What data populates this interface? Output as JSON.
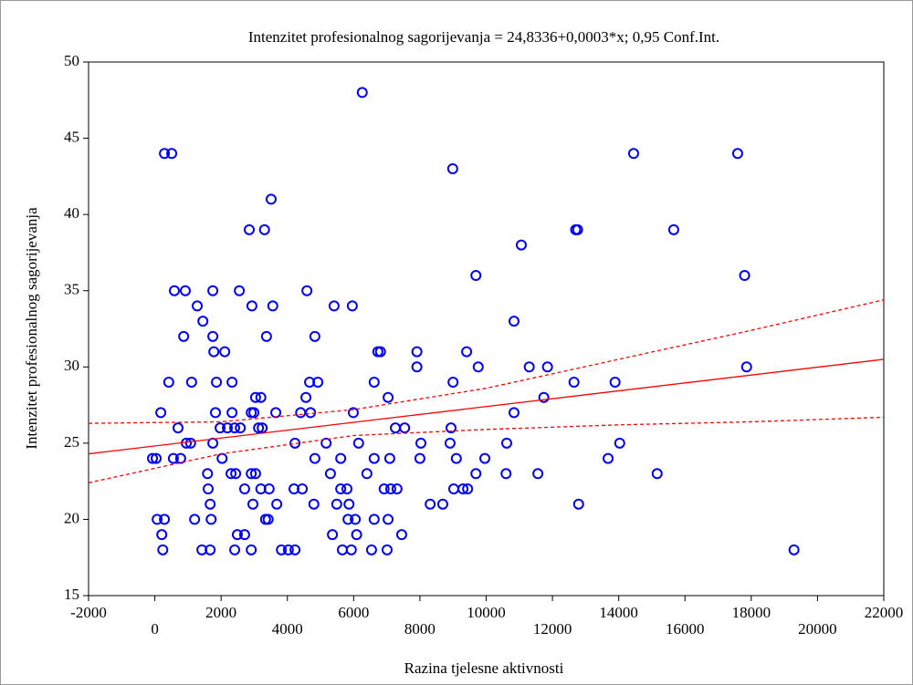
{
  "chart_data": {
    "type": "scatter",
    "title": "Intenzitet profesionalnog sagorijevanja = 24,8336+0,0003*x; 0,95 Conf.Int.",
    "x_label": "Razina tjelesne aktivnosti",
    "y_label": "Intenzitet profesionalnog sagorijevanja",
    "xlim": [
      -2000,
      22000
    ],
    "ylim": [
      15,
      50
    ],
    "xticks": [
      -2000,
      0,
      2000,
      4000,
      6000,
      8000,
      10000,
      12000,
      14000,
      16000,
      18000,
      20000,
      22000
    ],
    "yticks": [
      15,
      20,
      25,
      30,
      35,
      40,
      45,
      50
    ],
    "grid": false,
    "series": [
      {
        "color": "#0000ff",
        "x": [
          6260,
          290,
          510,
          14450,
          17590,
          8990,
          3510,
          2850,
          3310,
          12700,
          12760,
          15660,
          11060,
          9690,
          17800,
          590,
          920,
          1750,
          2550,
          4590,
          1280,
          2930,
          3560,
          5410,
          5960,
          1450,
          10840,
          870,
          1750,
          3370,
          4830,
          1780,
          2110,
          6730,
          6810,
          7910,
          9410,
          7910,
          9760,
          11300,
          11850,
          17860,
          420,
          1110,
          1860,
          2330,
          4670,
          4920,
          6620,
          9000,
          12650,
          13890,
          3040,
          3200,
          4560,
          7040,
          11740,
          180,
          1830,
          2330,
          2910,
          2990,
          3650,
          4400,
          4700,
          5990,
          10840,
          700,
          1970,
          2190,
          2410,
          2580,
          3130,
          3240,
          7260,
          7540,
          8940,
          950,
          1080,
          1750,
          4230,
          5170,
          6150,
          8030,
          8910,
          10620,
          14030,
          -70,
          40,
          560,
          780,
          2030,
          4830,
          5610,
          6620,
          7090,
          8000,
          9100,
          9960,
          13680,
          1590,
          2300,
          2440,
          2910,
          3040,
          5300,
          6400,
          9690,
          10600,
          11560,
          15160,
          1610,
          2710,
          3200,
          3450,
          4200,
          4450,
          5610,
          5800,
          6920,
          7120,
          7310,
          9020,
          9300,
          9440,
          1670,
          2960,
          3680,
          4800,
          5490,
          5860,
          8310,
          8690,
          12790,
          70,
          290,
          1200,
          1700,
          3340,
          3420,
          5830,
          6050,
          6620,
          7040,
          210,
          2490,
          2710,
          5360,
          6090,
          7450,
          240,
          1420,
          1670,
          2410,
          2910,
          3820,
          4030,
          4230,
          5660,
          5930,
          6540,
          7010,
          19290
        ],
        "values": [
          48,
          44,
          44,
          44,
          44,
          43,
          41,
          39,
          39,
          39,
          39,
          39,
          38,
          36,
          36,
          35,
          35,
          35,
          35,
          35,
          34,
          34,
          34,
          34,
          34,
          33,
          33,
          32,
          32,
          32,
          32,
          31,
          31,
          31,
          31,
          31,
          31,
          30,
          30,
          30,
          30,
          30,
          29,
          29,
          29,
          29,
          29,
          29,
          29,
          29,
          29,
          29,
          28,
          28,
          28,
          28,
          28,
          27,
          27,
          27,
          27,
          27,
          27,
          27,
          27,
          27,
          27,
          26,
          26,
          26,
          26,
          26,
          26,
          26,
          26,
          26,
          26,
          25,
          25,
          25,
          25,
          25,
          25,
          25,
          25,
          25,
          25,
          24,
          24,
          24,
          24,
          24,
          24,
          24,
          24,
          24,
          24,
          24,
          24,
          24,
          23,
          23,
          23,
          23,
          23,
          23,
          23,
          23,
          23,
          23,
          23,
          22,
          22,
          22,
          22,
          22,
          22,
          22,
          22,
          22,
          22,
          22,
          22,
          22,
          22,
          21,
          21,
          21,
          21,
          21,
          21,
          21,
          21,
          21,
          20,
          20,
          20,
          20,
          20,
          20,
          20,
          20,
          20,
          20,
          19,
          19,
          19,
          19,
          19,
          19,
          18,
          18,
          18,
          18,
          18,
          18,
          18,
          18,
          18,
          18,
          18,
          18,
          18
        ]
      }
    ],
    "fit_line": {
      "color": "#ff0000",
      "x": [
        -2000,
        22000
      ],
      "values": [
        24.3,
        30.5
      ]
    },
    "ci_upper": {
      "color": "#ff0000",
      "x": [
        -2000,
        2000,
        6000,
        10000,
        14000,
        18000,
        22000
      ],
      "values": [
        26.3,
        26.4,
        27.2,
        28.6,
        30.5,
        32.4,
        34.4
      ]
    },
    "ci_lower": {
      "color": "#ff0000",
      "x": [
        -2000,
        2000,
        6000,
        10000,
        14000,
        18000,
        22000
      ],
      "values": [
        22.4,
        24.3,
        25.5,
        25.9,
        26.2,
        26.4,
        26.7
      ]
    }
  }
}
